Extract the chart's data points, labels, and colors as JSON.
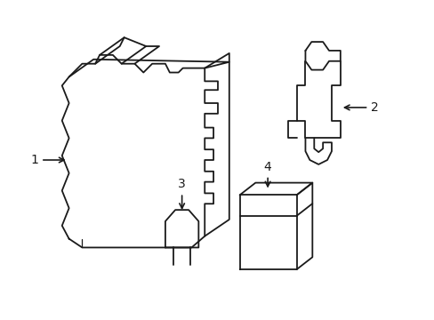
{
  "background_color": "#ffffff",
  "line_color": "#1a1a1a",
  "line_width": 1.3,
  "fig_width": 4.89,
  "fig_height": 3.6,
  "dpi": 100
}
